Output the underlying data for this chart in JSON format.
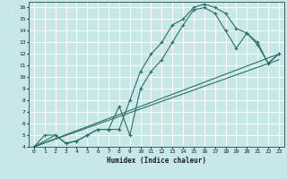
{
  "xlabel": "Humidex (Indice chaleur)",
  "bg_color": "#c8e8e8",
  "grid_color": "#ffffff",
  "line_color": "#2d6e65",
  "xlim": [
    -0.5,
    23.5
  ],
  "ylim": [
    4,
    16.5
  ],
  "xticks": [
    0,
    1,
    2,
    3,
    4,
    5,
    6,
    7,
    8,
    9,
    10,
    11,
    12,
    13,
    14,
    15,
    16,
    17,
    18,
    19,
    20,
    21,
    22,
    23
  ],
  "yticks": [
    4,
    5,
    6,
    7,
    8,
    9,
    10,
    11,
    12,
    13,
    14,
    15,
    16
  ],
  "curve1_x": [
    0,
    1,
    2,
    3,
    4,
    5,
    6,
    7,
    8,
    9,
    10,
    11,
    12,
    13,
    14,
    15,
    16,
    17,
    18,
    19,
    20,
    21,
    22,
    23
  ],
  "curve1_y": [
    4.0,
    5.0,
    5.0,
    4.3,
    4.5,
    5.0,
    5.5,
    5.5,
    5.5,
    8.0,
    10.5,
    12.0,
    13.0,
    14.5,
    15.0,
    16.0,
    16.3,
    16.0,
    15.5,
    14.2,
    13.8,
    13.0,
    11.2,
    12.0
  ],
  "curve2_x": [
    0,
    2,
    3,
    4,
    5,
    6,
    7,
    8,
    9,
    10,
    11,
    12,
    13,
    14,
    15,
    16,
    17,
    18,
    19,
    20,
    21,
    22,
    23
  ],
  "curve2_y": [
    4.0,
    5.0,
    4.3,
    4.5,
    5.0,
    5.5,
    5.5,
    7.5,
    5.0,
    9.0,
    10.5,
    11.5,
    13.0,
    14.5,
    15.8,
    16.0,
    15.5,
    14.0,
    12.5,
    13.8,
    12.8,
    11.2,
    12.0
  ],
  "line1_x": [
    0,
    23
  ],
  "line1_y": [
    4.0,
    12.0
  ],
  "line2_x": [
    0,
    23
  ],
  "line2_y": [
    4.0,
    11.5
  ]
}
